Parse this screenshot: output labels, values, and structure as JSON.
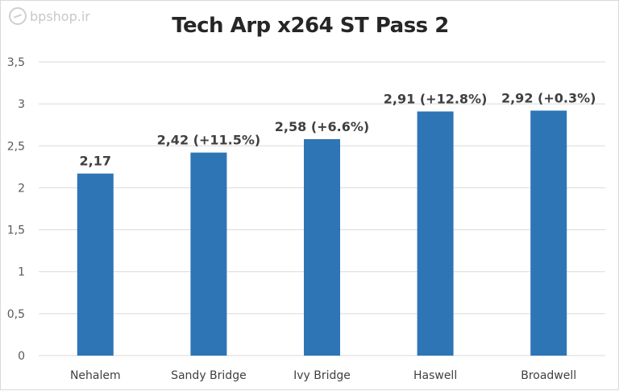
{
  "watermark": {
    "text": "bpshop.ir",
    "icon": "bpshop-logo-icon"
  },
  "chart_data": {
    "type": "bar",
    "title": "Tech Arp x264 ST Pass 2",
    "xlabel": "",
    "ylabel": "",
    "categories": [
      "Nehalem",
      "Sandy Bridge",
      "Ivy Bridge",
      "Haswell",
      "Broadwell"
    ],
    "values": [
      2.17,
      2.42,
      2.58,
      2.91,
      2.92
    ],
    "data_labels": [
      "2,17",
      "2,42 (+11.5%)",
      "2,58 (+6.6%)",
      "2,91 (+12.8%)",
      "2,92 (+0.3%)"
    ],
    "ylim": [
      0,
      3.5
    ],
    "yticks": [
      0,
      0.5,
      1,
      1.5,
      2,
      2.5,
      3,
      3.5
    ],
    "ytick_labels": [
      "0",
      "0,5",
      "1",
      "1,5",
      "2",
      "2,5",
      "3",
      "3,5"
    ],
    "grid": true,
    "legend": "none",
    "bar_color": "#2e75b6",
    "grid_color": "#d9d9d9"
  }
}
